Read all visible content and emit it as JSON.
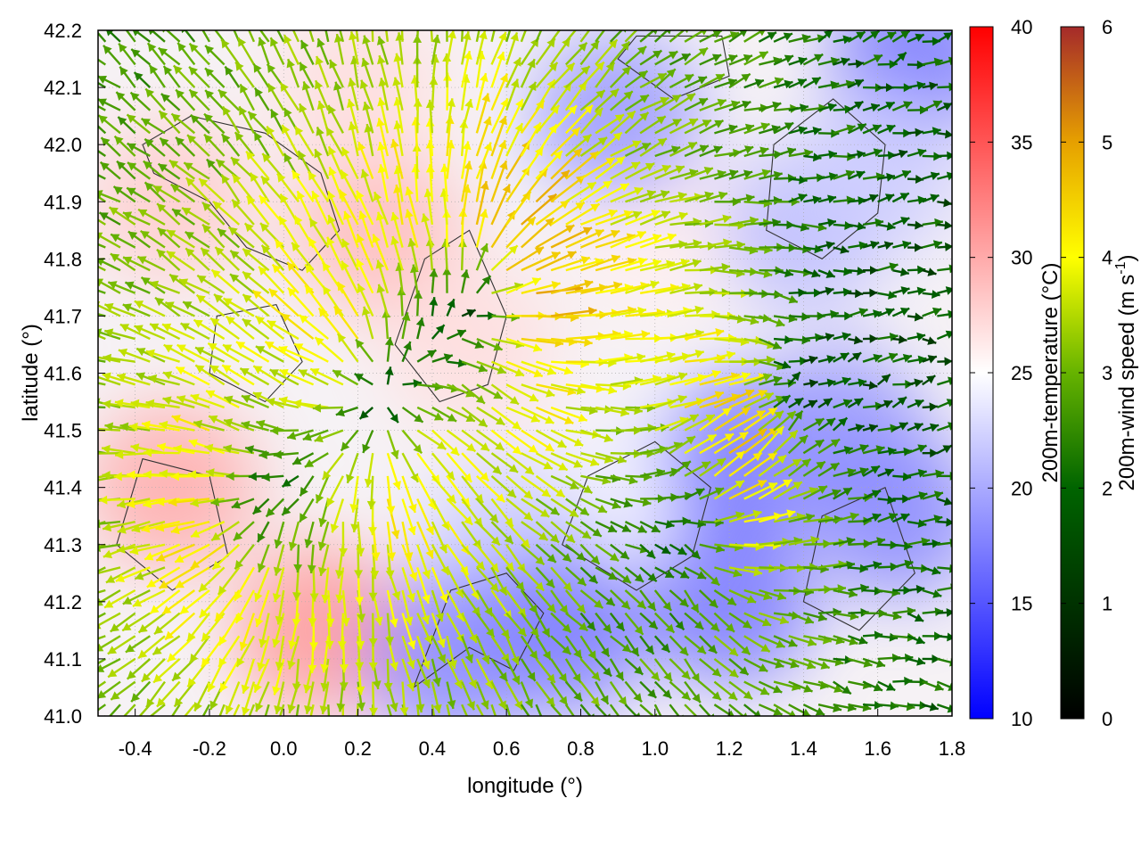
{
  "chart_data": {
    "type": "heatmap",
    "description_type": "temperature field with wind vectors and terrain contours",
    "xlabel": "longitude (°)",
    "ylabel": "latitude (°)",
    "xlim": [
      -0.5,
      1.8
    ],
    "ylim": [
      41.0,
      42.2
    ],
    "x_ticks": [
      "-0.4",
      "-0.2",
      "0.0",
      "0.2",
      "0.4",
      "0.6",
      "0.8",
      "1.0",
      "1.2",
      "1.4",
      "1.6",
      "1.8"
    ],
    "x_tick_values": [
      -0.4,
      -0.2,
      0.0,
      0.2,
      0.4,
      0.6,
      0.8,
      1.0,
      1.2,
      1.4,
      1.6,
      1.8
    ],
    "y_ticks": [
      "41.0",
      "41.1",
      "41.2",
      "41.3",
      "41.4",
      "41.5",
      "41.6",
      "41.7",
      "41.8",
      "41.9",
      "42.0",
      "42.1",
      "42.2"
    ],
    "y_tick_values": [
      41.0,
      41.1,
      41.2,
      41.3,
      41.4,
      41.5,
      41.6,
      41.7,
      41.8,
      41.9,
      42.0,
      42.1,
      42.2
    ],
    "grid": true,
    "temperature_colorbar": {
      "label": "200m-temperature (°C)",
      "range": [
        10,
        40
      ],
      "ticks": [
        "10",
        "15",
        "20",
        "25",
        "30",
        "35",
        "40"
      ],
      "tick_values": [
        10,
        15,
        20,
        25,
        30,
        35,
        40
      ],
      "colors": [
        "#0000ff",
        "#ffffff",
        "#ff0000"
      ]
    },
    "wind_colorbar": {
      "label_main": "200m-wind speed (m s",
      "label_sup": "-1",
      "label_end": ")",
      "range": [
        0,
        6
      ],
      "ticks": [
        "0",
        "1",
        "2",
        "3",
        "4",
        "5",
        "6"
      ],
      "tick_values": [
        0,
        1,
        2,
        3,
        4,
        5,
        6
      ],
      "colors": [
        "#000000",
        "#006400",
        "#66b300",
        "#ffff00",
        "#e6a000",
        "#a52a2a"
      ]
    },
    "temperature_regions": [
      {
        "lon": -0.3,
        "lat": 41.9,
        "temp": 28
      },
      {
        "lon": -0.3,
        "lat": 41.4,
        "temp": 30
      },
      {
        "lon": 0.1,
        "lat": 41.15,
        "temp": 31
      },
      {
        "lon": 0.25,
        "lat": 41.85,
        "temp": 29
      },
      {
        "lon": 0.5,
        "lat": 41.65,
        "temp": 27
      },
      {
        "lon": 0.6,
        "lat": 41.3,
        "temp": 22
      },
      {
        "lon": 0.75,
        "lat": 41.15,
        "temp": 17
      },
      {
        "lon": 0.45,
        "lat": 41.1,
        "temp": 18
      },
      {
        "lon": 1.0,
        "lat": 41.4,
        "temp": 24
      },
      {
        "lon": 1.25,
        "lat": 41.45,
        "temp": 17
      },
      {
        "lon": 1.5,
        "lat": 41.5,
        "temp": 19
      },
      {
        "lon": 1.65,
        "lat": 41.35,
        "temp": 18
      },
      {
        "lon": 1.2,
        "lat": 41.2,
        "temp": 17
      },
      {
        "lon": 1.0,
        "lat": 41.85,
        "temp": 26
      },
      {
        "lon": 1.4,
        "lat": 41.85,
        "temp": 21
      },
      {
        "lon": 0.9,
        "lat": 42.05,
        "temp": 19
      },
      {
        "lon": 1.7,
        "lat": 42.15,
        "temp": 17
      },
      {
        "lon": 0.2,
        "lat": 42.1,
        "temp": 27
      },
      {
        "lon": 1.6,
        "lat": 41.95,
        "temp": 22
      }
    ],
    "wind_vector_sources": [
      {
        "lon": 0.25,
        "lat": 41.55,
        "kind": "source",
        "strength": 6.5
      },
      {
        "lon": 0.55,
        "lat": 41.75,
        "kind": "source",
        "strength": 5.5
      },
      {
        "lon": -0.1,
        "lat": 41.35,
        "kind": "source",
        "strength": 4
      },
      {
        "lon": 1.15,
        "lat": 41.35,
        "kind": "source",
        "strength": 4
      },
      {
        "lon": 1.25,
        "lat": 41.55,
        "kind": "sink",
        "strength": 4
      }
    ],
    "wind_vector_spacing_deg": 0.04,
    "contours": [
      [
        [
          -0.35,
          41.95
        ],
        [
          -0.2,
          41.9
        ],
        [
          -0.1,
          41.82
        ],
        [
          0.05,
          41.78
        ],
        [
          0.15,
          41.85
        ],
        [
          0.1,
          41.95
        ],
        [
          -0.05,
          42.02
        ],
        [
          -0.25,
          42.05
        ],
        [
          -0.38,
          42.0
        ]
      ],
      [
        [
          0.3,
          41.65
        ],
        [
          0.42,
          41.55
        ],
        [
          0.55,
          41.58
        ],
        [
          0.6,
          41.7
        ],
        [
          0.5,
          41.85
        ],
        [
          0.38,
          41.8
        ]
      ],
      [
        [
          0.75,
          41.3
        ],
        [
          0.95,
          41.22
        ],
        [
          1.1,
          41.28
        ],
        [
          1.15,
          41.4
        ],
        [
          1.0,
          41.48
        ],
        [
          0.82,
          41.42
        ]
      ],
      [
        [
          1.3,
          41.85
        ],
        [
          1.45,
          41.8
        ],
        [
          1.6,
          41.88
        ],
        [
          1.62,
          42.0
        ],
        [
          1.48,
          42.08
        ],
        [
          1.32,
          42.0
        ]
      ],
      [
        [
          0.9,
          42.15
        ],
        [
          1.05,
          42.08
        ],
        [
          1.2,
          42.12
        ],
        [
          1.18,
          42.19
        ],
        [
          0.95,
          42.19
        ]
      ],
      [
        [
          -0.45,
          41.3
        ],
        [
          -0.3,
          41.22
        ],
        [
          -0.15,
          41.28
        ],
        [
          -0.2,
          41.42
        ],
        [
          -0.38,
          41.45
        ]
      ],
      [
        [
          0.35,
          41.05
        ],
        [
          0.5,
          41.12
        ],
        [
          0.62,
          41.08
        ],
        [
          0.7,
          41.18
        ],
        [
          0.6,
          41.25
        ],
        [
          0.45,
          41.22
        ]
      ],
      [
        [
          1.4,
          41.2
        ],
        [
          1.55,
          41.15
        ],
        [
          1.7,
          41.25
        ],
        [
          1.62,
          41.4
        ],
        [
          1.45,
          41.35
        ]
      ],
      [
        [
          -0.2,
          41.6
        ],
        [
          -0.05,
          41.55
        ],
        [
          0.05,
          41.62
        ],
        [
          -0.02,
          41.72
        ],
        [
          -0.18,
          41.7
        ]
      ]
    ]
  }
}
